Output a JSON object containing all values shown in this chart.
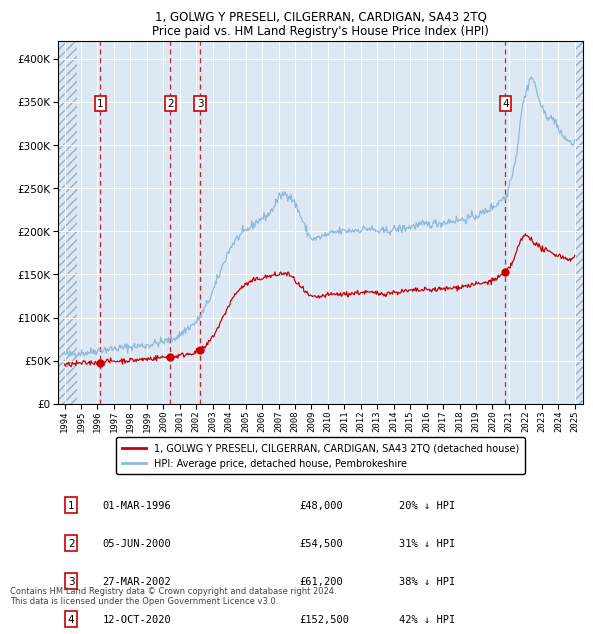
{
  "title": "1, GOLWG Y PRESELI, CILGERRAN, CARDIGAN, SA43 2TQ",
  "subtitle": "Price paid vs. HM Land Registry's House Price Index (HPI)",
  "legend_line1": "1, GOLWG Y PRESELI, CILGERRAN, CARDIGAN, SA43 2TQ (detached house)",
  "legend_line2": "HPI: Average price, detached house, Pembrokeshire",
  "footer_line1": "Contains HM Land Registry data © Crown copyright and database right 2024.",
  "footer_line2": "This data is licensed under the Open Government Licence v3.0.",
  "transactions": [
    {
      "num": 1,
      "date": "01-MAR-1996",
      "price": "£48,000",
      "pct": "20% ↓ HPI",
      "x_year": 1996.17,
      "y_val": 48000
    },
    {
      "num": 2,
      "date": "05-JUN-2000",
      "price": "£54,500",
      "pct": "31% ↓ HPI",
      "x_year": 2000.42,
      "y_val": 54500
    },
    {
      "num": 3,
      "date": "27-MAR-2002",
      "price": "£61,200",
      "pct": "38% ↓ HPI",
      "x_year": 2002.23,
      "y_val": 61200
    },
    {
      "num": 4,
      "date": "12-OCT-2020",
      "price": "£152,500",
      "pct": "42% ↓ HPI",
      "x_year": 2020.78,
      "y_val": 152500
    }
  ],
  "hpi_color": "#92b8d8",
  "price_color": "#cc0000",
  "dashed_line_color": "#cc0000",
  "dot_color": "#cc0000",
  "plot_bg_color": "#dce9f5",
  "hatch_color": "#9aafc0",
  "ylim": [
    0,
    420000
  ],
  "yticks": [
    0,
    50000,
    100000,
    150000,
    200000,
    250000,
    300000,
    350000,
    400000
  ],
  "xlim_start": 1993.6,
  "xlim_end": 2025.5,
  "hatch_right_start": 2025.0,
  "hatch_left_end": 1994.75,
  "xticks": [
    1994,
    1995,
    1996,
    1997,
    1998,
    1999,
    2000,
    2001,
    2002,
    2003,
    2004,
    2005,
    2006,
    2007,
    2008,
    2009,
    2010,
    2011,
    2012,
    2013,
    2014,
    2015,
    2016,
    2017,
    2018,
    2019,
    2020,
    2021,
    2022,
    2023,
    2024,
    2025
  ]
}
